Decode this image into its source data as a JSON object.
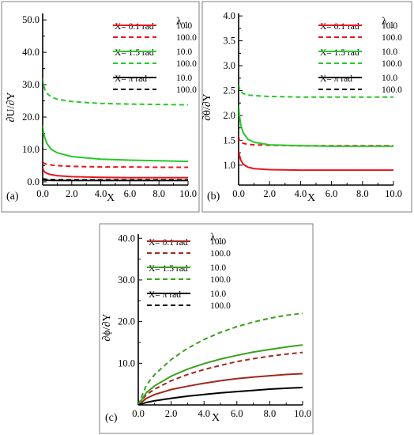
{
  "chart_data": [
    {
      "panel_label": "(a)",
      "type": "line",
      "ylabel": "∂U/∂Y",
      "xlabel": "X",
      "xlim": [
        0,
        10
      ],
      "ylim": [
        -1,
        52
      ],
      "x_ticks": [
        "0.0",
        "2.0",
        "4.0",
        "6.0",
        "8.0",
        "10.0"
      ],
      "y_ticks": [
        "0.0",
        "10.0",
        "20.0",
        "30.0",
        "40.0",
        "50.0"
      ],
      "y_tick_values": [
        0,
        10,
        20,
        30,
        40,
        50
      ],
      "legend_title": "λ",
      "legend_title_sub": "1",
      "legend": [
        {
          "group": "X= 0.1 rad",
          "entries": [
            "10.0",
            "100.0"
          ],
          "color": "#e8141e"
        },
        {
          "group": "X= 1.5 rad",
          "entries": [
            "10.0",
            "100.0"
          ],
          "color": "#28c828"
        },
        {
          "group": "X= π rad",
          "entries": [
            "10.0",
            "100.0"
          ],
          "color": "#000000"
        }
      ],
      "series": [
        {
          "color": "#e8141e",
          "dash": false,
          "x": [
            0,
            0.1,
            0.3,
            0.6,
            1,
            2,
            4,
            6,
            8,
            10
          ],
          "y": [
            4.2,
            3.2,
            2.6,
            2.2,
            1.9,
            1.6,
            1.4,
            1.3,
            1.3,
            1.3
          ]
        },
        {
          "color": "#e8141e",
          "dash": true,
          "x": [
            0,
            0.1,
            0.3,
            0.6,
            1,
            2,
            4,
            6,
            8,
            10
          ],
          "y": [
            6.0,
            5.7,
            5.4,
            5.2,
            5.0,
            4.8,
            4.6,
            4.6,
            4.5,
            4.5
          ]
        },
        {
          "color": "#28c828",
          "dash": false,
          "x": [
            0,
            0.05,
            0.15,
            0.3,
            0.6,
            1,
            2,
            4,
            6,
            8,
            10
          ],
          "y": [
            17.5,
            15.5,
            13.5,
            11.8,
            10.0,
            9.0,
            7.8,
            7.0,
            6.7,
            6.5,
            6.3
          ]
        },
        {
          "color": "#28c828",
          "dash": true,
          "x": [
            0,
            0.05,
            0.15,
            0.3,
            0.6,
            1,
            2,
            4,
            6,
            8,
            10
          ],
          "y": [
            32.0,
            30.0,
            28.5,
            27.3,
            26.2,
            25.5,
            24.8,
            24.2,
            24.0,
            23.9,
            23.8
          ]
        },
        {
          "color": "#000000",
          "dash": false,
          "x": [
            0,
            0.2,
            0.5,
            1,
            2,
            4,
            6,
            8,
            10
          ],
          "y": [
            0.6,
            0.5,
            0.45,
            0.4,
            0.4,
            0.4,
            0.4,
            0.4,
            0.4
          ]
        },
        {
          "color": "#000000",
          "dash": true,
          "x": [
            0,
            0.2,
            0.5,
            1,
            2,
            4,
            6,
            8,
            10
          ],
          "y": [
            0.9,
            0.8,
            0.7,
            0.65,
            0.6,
            0.6,
            0.6,
            0.6,
            0.6
          ]
        }
      ]
    },
    {
      "panel_label": "(b)",
      "type": "line",
      "ylabel": "∂θ/∂Y",
      "xlabel": "X",
      "xlim": [
        0,
        10
      ],
      "ylim": [
        0.6,
        4.05
      ],
      "x_ticks": [
        "0.0",
        "2.0",
        "4.0",
        "6.0",
        "8.0",
        "10.0"
      ],
      "y_ticks": [
        "1.0",
        "1.5",
        "2.0",
        "2.5",
        "3.0",
        "3.5",
        "4.0"
      ],
      "y_tick_values": [
        1.0,
        1.5,
        2.0,
        2.5,
        3.0,
        3.5,
        4.0
      ],
      "legend_title": "λ",
      "legend_title_sub": "1",
      "legend": [
        {
          "group": "X= 0.1 rad",
          "entries": [
            "10.0",
            "100.0"
          ],
          "color": "#e8141e"
        },
        {
          "group": "X= 1.5 rad",
          "entries": [
            "10.0",
            "100.0"
          ],
          "color": "#28c828"
        },
        {
          "group": "X= π rad",
          "entries": [
            "10.0",
            "100.0"
          ],
          "color": "#000000"
        }
      ],
      "series": [
        {
          "color": "#e8141e",
          "dash": false,
          "x": [
            0,
            0.05,
            0.15,
            0.3,
            0.6,
            1,
            2,
            4,
            6,
            8,
            10
          ],
          "y": [
            1.3,
            1.2,
            1.1,
            1.02,
            0.96,
            0.93,
            0.91,
            0.9,
            0.9,
            0.9,
            0.9
          ]
        },
        {
          "color": "#e8141e",
          "dash": true,
          "x": [
            0,
            0.05,
            0.15,
            0.3,
            0.6,
            1,
            2,
            4,
            6,
            8,
            10
          ],
          "y": [
            1.58,
            1.5,
            1.46,
            1.44,
            1.42,
            1.41,
            1.4,
            1.39,
            1.39,
            1.39,
            1.39
          ]
        },
        {
          "color": "#28c828",
          "dash": false,
          "x": [
            0,
            0.05,
            0.15,
            0.3,
            0.6,
            1,
            2,
            4,
            6,
            8,
            10
          ],
          "y": [
            2.2,
            2.0,
            1.8,
            1.65,
            1.52,
            1.46,
            1.41,
            1.39,
            1.38,
            1.38,
            1.38
          ]
        },
        {
          "color": "#28c828",
          "dash": true,
          "x": [
            0,
            0.05,
            0.15,
            0.3,
            0.6,
            1,
            2,
            4,
            6,
            8,
            10
          ],
          "y": [
            2.62,
            2.55,
            2.48,
            2.44,
            2.41,
            2.4,
            2.38,
            2.37,
            2.37,
            2.37,
            2.37
          ]
        }
      ]
    },
    {
      "panel_label": "(c)",
      "type": "line",
      "ylabel": "∂ϕ/∂Y",
      "xlabel": "X",
      "xlim": [
        0,
        10
      ],
      "ylim": [
        0,
        41
      ],
      "x_ticks": [
        "0.0",
        "2.0",
        "4.0",
        "6.0",
        "8.0",
        "10.0"
      ],
      "y_ticks": [
        "10.0",
        "20.0",
        "30.0",
        "40.0"
      ],
      "y_tick_values": [
        10,
        20,
        30,
        40
      ],
      "legend_title": "λ",
      "legend_title_sub": "1",
      "legend": [
        {
          "group": "X= 0.1 rad",
          "entries": [
            "10.0",
            "100.0"
          ],
          "color": "#a0281e"
        },
        {
          "group": "X= 1.5 rad",
          "entries": [
            "10.0",
            "100.0"
          ],
          "color": "#3ca01e"
        },
        {
          "group": "X= π rad",
          "entries": [
            "10.0",
            "100.0"
          ],
          "color": "#000000"
        }
      ],
      "series": [
        {
          "color": "#a0281e",
          "dash": false,
          "x": [
            0,
            0.5,
            1,
            2,
            3,
            4,
            5,
            6,
            7,
            8,
            9,
            10
          ],
          "y": [
            0,
            1.6,
            2.5,
            3.7,
            4.5,
            5.2,
            5.8,
            6.3,
            6.7,
            7.0,
            7.3,
            7.5
          ]
        },
        {
          "color": "#a0281e",
          "dash": true,
          "x": [
            0,
            0.5,
            1,
            2,
            3,
            4,
            5,
            6,
            7,
            8,
            9,
            10
          ],
          "y": [
            0,
            2.5,
            3.8,
            5.8,
            7.3,
            8.5,
            9.5,
            10.4,
            11.1,
            11.7,
            12.2,
            12.6
          ]
        },
        {
          "color": "#3ca01e",
          "dash": false,
          "x": [
            0,
            0.5,
            1,
            2,
            3,
            4,
            5,
            6,
            7,
            8,
            9,
            10
          ],
          "y": [
            0,
            3.0,
            4.6,
            6.9,
            8.6,
            9.9,
            11.0,
            11.9,
            12.7,
            13.3,
            13.9,
            14.4
          ]
        },
        {
          "color": "#3ca01e",
          "dash": true,
          "x": [
            0,
            0.5,
            1,
            2,
            3,
            4,
            5,
            6,
            7,
            8,
            9,
            10
          ],
          "y": [
            0,
            4.8,
            7.3,
            10.9,
            13.6,
            15.7,
            17.4,
            18.8,
            19.9,
            20.8,
            21.5,
            22.0
          ]
        },
        {
          "color": "#000000",
          "dash": false,
          "x": [
            0,
            0.5,
            1,
            2,
            3,
            4,
            5,
            6,
            7,
            8,
            9,
            10
          ],
          "y": [
            0,
            0.6,
            1.0,
            1.6,
            2.1,
            2.5,
            2.9,
            3.2,
            3.5,
            3.8,
            4.0,
            4.2
          ]
        }
      ]
    }
  ]
}
